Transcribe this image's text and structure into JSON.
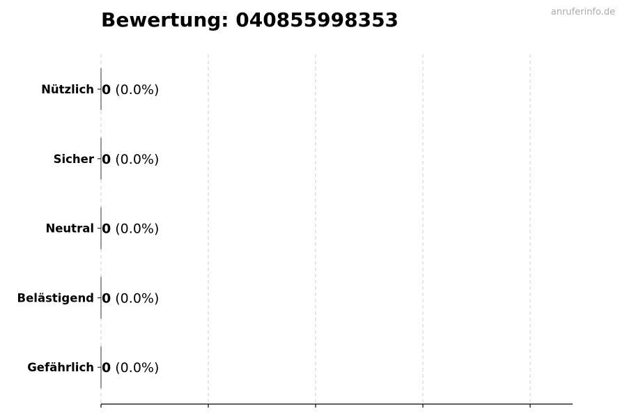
{
  "title": "Bewertung: 040855998353",
  "watermark": "anruferinfo.de",
  "chart_data": {
    "type": "bar",
    "orientation": "horizontal",
    "title": "Bewertung: 040855998353",
    "categories": [
      "Nützlich",
      "Sicher",
      "Neutral",
      "Belästigend",
      "Gefährlich"
    ],
    "values": [
      0,
      0,
      0,
      0,
      0
    ],
    "labels": [
      {
        "count": "0",
        "pct": " (0.0%)"
      },
      {
        "count": "0",
        "pct": " (0.0%)"
      },
      {
        "count": "0",
        "pct": " (0.0%)"
      },
      {
        "count": "0",
        "pct": " (0.0%)"
      },
      {
        "count": "0",
        "pct": " (0.0%)"
      }
    ],
    "xlabel": "",
    "ylabel": "",
    "xlim": [
      0,
      4.4
    ],
    "grid": "x-dashed",
    "x_tick_labels_shown": false,
    "colors": {
      "bar_edge": "#000000",
      "grid": "#cccccc",
      "watermark": "#aaaaaa"
    }
  }
}
